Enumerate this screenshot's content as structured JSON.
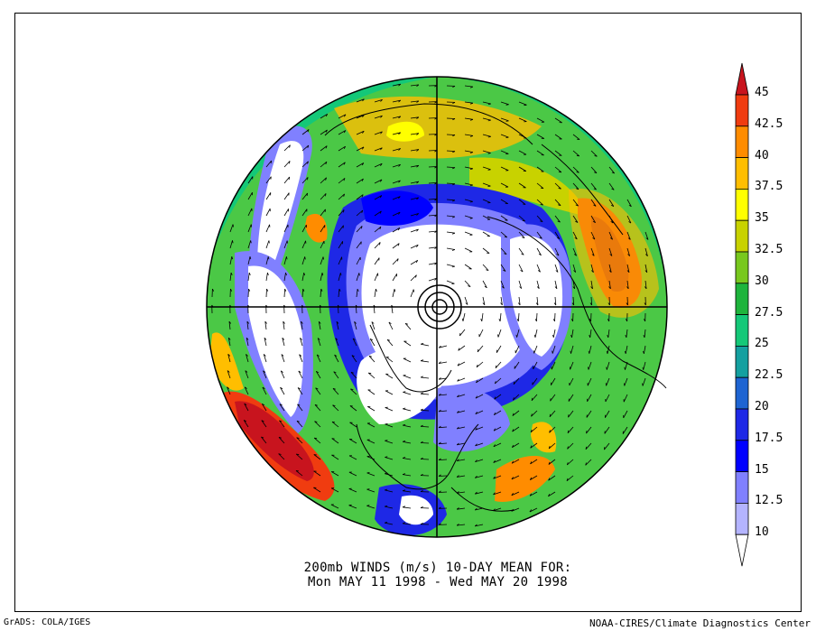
{
  "title": {
    "line1": "200mb WINDS (m/s)   10-DAY MEAN FOR:",
    "line2": "Mon MAY 11 1998 - Wed MAY 20 1998"
  },
  "footer": {
    "left": "GrADS: COLA/IGES",
    "right": "NOAA-CIRES/Climate Diagnostics Center"
  },
  "colorbar": {
    "levels": [
      "45",
      "42.5",
      "40",
      "37.5",
      "35",
      "32.5",
      "30",
      "27.5",
      "25",
      "22.5",
      "20",
      "17.5",
      "15",
      "12.5",
      "10"
    ],
    "colors": [
      "#c8141e",
      "#f03c10",
      "#ff8c00",
      "#ffbe00",
      "#ffff00",
      "#c8d200",
      "#78c81e",
      "#1eb43c",
      "#14c878",
      "#14a0a0",
      "#1e64d2",
      "#1e28e6",
      "#0000ff",
      "#8080ff",
      "#b4b4ff",
      "#ffffff"
    ]
  },
  "map": {
    "projection": "north-polar-stereographic",
    "center_marker": "pole"
  }
}
